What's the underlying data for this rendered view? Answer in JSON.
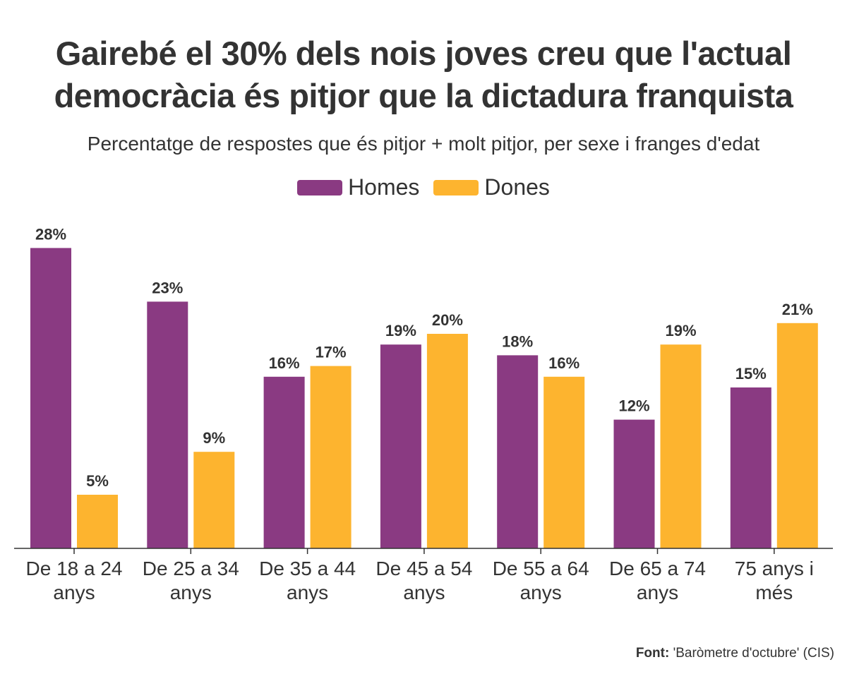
{
  "title_line1": "Gairebé el 30% dels nois joves creu que l'actual",
  "title_line2": "democràcia és pitjor que la dictadura franquista",
  "subtitle": "Percentatge de respostes que és pitjor + molt pitjor, per sexe i franges d'edat",
  "source_label": "Font:",
  "source_text": "'Baròmetre d'octubre' (CIS)",
  "colors": {
    "homes": "#8A3A82",
    "dones": "#FDB42F",
    "axis": "#333333",
    "text": "#333333"
  },
  "chart_data": {
    "type": "bar",
    "categories": [
      [
        "De 18 a 24",
        "anys"
      ],
      [
        "De 25 a 34",
        "anys"
      ],
      [
        "De 35 a 44",
        "anys"
      ],
      [
        "De 45 a 54",
        "anys"
      ],
      [
        "De 55 a 64",
        "anys"
      ],
      [
        "De 65 a 74",
        "anys"
      ],
      [
        "75 anys i",
        "més"
      ]
    ],
    "series": [
      {
        "name": "Homes",
        "values": [
          28,
          23,
          16,
          19,
          18,
          12,
          15
        ],
        "labels": [
          "28%",
          "23%",
          "16%",
          "19%",
          "18%",
          "12%",
          "15%"
        ]
      },
      {
        "name": "Dones",
        "values": [
          5,
          9,
          17,
          20,
          16,
          19,
          21
        ],
        "labels": [
          "5%",
          "9%",
          "17%",
          "20%",
          "16%",
          "19%",
          "21%"
        ]
      }
    ],
    "ylim": [
      0,
      30
    ],
    "grid": false,
    "legend": "top-center"
  }
}
